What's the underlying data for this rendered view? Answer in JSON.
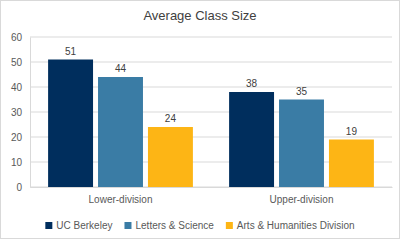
{
  "chart_data": {
    "type": "bar",
    "title": "Average Class Size",
    "categories": [
      "Lower-division",
      "Upper-division"
    ],
    "series": [
      {
        "name": "UC Berkeley",
        "color": "#002e5d",
        "values": [
          51,
          38
        ]
      },
      {
        "name": "Letters & Science",
        "color": "#3a7ca5",
        "values": [
          44,
          35
        ]
      },
      {
        "name": "Arts & Humanities Division",
        "color": "#fdb515",
        "values": [
          24,
          19
        ]
      }
    ],
    "ylim": [
      0,
      60
    ],
    "yticks": [
      0,
      10,
      20,
      30,
      40,
      50,
      60
    ],
    "grid": true,
    "data_labels": true,
    "legend": "bottom"
  }
}
